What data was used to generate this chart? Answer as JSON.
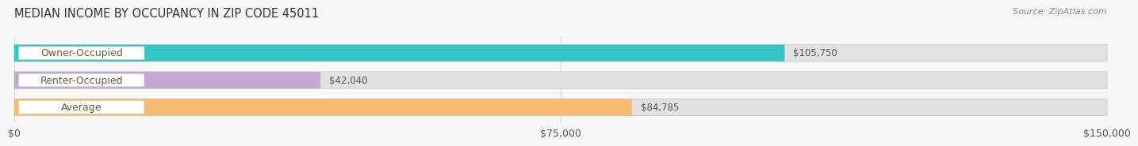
{
  "title": "MEDIAN INCOME BY OCCUPANCY IN ZIP CODE 45011",
  "source": "Source: ZipAtlas.com",
  "categories": [
    "Owner-Occupied",
    "Renter-Occupied",
    "Average"
  ],
  "values": [
    105750,
    42040,
    84785
  ],
  "labels": [
    "$105,750",
    "$42,040",
    "$84,785"
  ],
  "bar_colors": [
    "#35c5c5",
    "#c4a8d4",
    "#f5bb72"
  ],
  "bar_bg_color": "#e2e2e2",
  "bar_bg_edge_color": "#d0d0d0",
  "xlim": [
    0,
    150000
  ],
  "xticks": [
    0,
    75000,
    150000
  ],
  "xticklabels": [
    "$0",
    "$75,000",
    "$150,000"
  ],
  "title_fontsize": 10.5,
  "source_fontsize": 8,
  "label_fontsize": 9,
  "bar_label_fontsize": 8.5,
  "background_color": "#f7f7f7",
  "plot_bg_color": "#f7f7f7",
  "grid_color": "#d8d8d8",
  "label_text_color": "#6d6030",
  "value_text_color": "#555555"
}
